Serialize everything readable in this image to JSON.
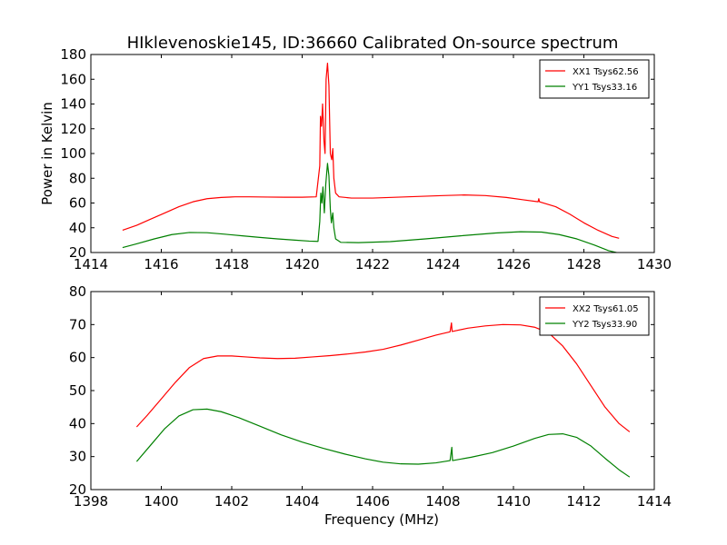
{
  "figure": {
    "title": "HIklevenoskie145, ID:36660 Calibrated On-source spectrum"
  },
  "chart_data": [
    {
      "type": "line",
      "title": "HIklevenoskie145, ID:36660 Calibrated On-source spectrum",
      "xlabel": "",
      "ylabel": "Power in Kelvin",
      "xlim": [
        1414,
        1430
      ],
      "ylim": [
        20,
        180
      ],
      "xticks": [
        "1414",
        "1416",
        "1418",
        "1420",
        "1422",
        "1424",
        "1426",
        "1428",
        "1430"
      ],
      "yticks": [
        "20",
        "40",
        "60",
        "80",
        "100",
        "120",
        "140",
        "160",
        "180"
      ],
      "legend_position": "top-right",
      "grid": false,
      "series": [
        {
          "name": "XX1 Tsys62.56",
          "color": "#ff0000",
          "points": [
            [
              1414.9,
              38
            ],
            [
              1415.3,
              42
            ],
            [
              1415.7,
              47
            ],
            [
              1416.1,
              52
            ],
            [
              1416.5,
              57
            ],
            [
              1416.9,
              61
            ],
            [
              1417.3,
              63.5
            ],
            [
              1417.7,
              64.5
            ],
            [
              1418.1,
              65
            ],
            [
              1418.5,
              65
            ],
            [
              1419.0,
              64.8
            ],
            [
              1419.5,
              64.7
            ],
            [
              1420.0,
              64.7
            ],
            [
              1420.4,
              65
            ],
            [
              1420.5,
              90
            ],
            [
              1420.52,
              130
            ],
            [
              1420.55,
              122
            ],
            [
              1420.58,
              140
            ],
            [
              1420.62,
              110
            ],
            [
              1420.65,
              100
            ],
            [
              1420.68,
              160
            ],
            [
              1420.72,
              173
            ],
            [
              1420.76,
              155
            ],
            [
              1420.8,
              100
            ],
            [
              1420.84,
              95
            ],
            [
              1420.87,
              104
            ],
            [
              1420.9,
              80
            ],
            [
              1420.95,
              68
            ],
            [
              1421.05,
              65
            ],
            [
              1421.4,
              64
            ],
            [
              1422.0,
              64
            ],
            [
              1423.0,
              65
            ],
            [
              1424.0,
              66
            ],
            [
              1424.6,
              66.5
            ],
            [
              1425.2,
              66
            ],
            [
              1425.8,
              64.5
            ],
            [
              1426.3,
              62.5
            ],
            [
              1426.7,
              61
            ],
            [
              1426.72,
              63.5
            ],
            [
              1426.74,
              61
            ],
            [
              1427.2,
              57
            ],
            [
              1427.6,
              51
            ],
            [
              1428.0,
              44
            ],
            [
              1428.4,
              38
            ],
            [
              1428.8,
              33
            ],
            [
              1429.0,
              31.5
            ]
          ]
        },
        {
          "name": "YY1 Tsys33.16",
          "color": "#008000",
          "points": [
            [
              1414.9,
              24
            ],
            [
              1415.3,
              27
            ],
            [
              1415.8,
              31
            ],
            [
              1416.3,
              34.5
            ],
            [
              1416.8,
              36.2
            ],
            [
              1417.3,
              36
            ],
            [
              1417.8,
              34.8
            ],
            [
              1418.3,
              33.5
            ],
            [
              1418.8,
              32.2
            ],
            [
              1419.3,
              31
            ],
            [
              1419.8,
              30
            ],
            [
              1420.2,
              29.2
            ],
            [
              1420.45,
              29
            ],
            [
              1420.5,
              45
            ],
            [
              1420.53,
              68
            ],
            [
              1420.56,
              60
            ],
            [
              1420.59,
              73
            ],
            [
              1420.63,
              52
            ],
            [
              1420.67,
              75
            ],
            [
              1420.72,
              92
            ],
            [
              1420.76,
              82
            ],
            [
              1420.8,
              55
            ],
            [
              1420.83,
              44
            ],
            [
              1420.87,
              52
            ],
            [
              1420.9,
              40
            ],
            [
              1420.95,
              31
            ],
            [
              1421.1,
              28.2
            ],
            [
              1421.6,
              28
            ],
            [
              1422.5,
              28.8
            ],
            [
              1423.5,
              31
            ],
            [
              1424.5,
              33.5
            ],
            [
              1425.5,
              35.8
            ],
            [
              1426.2,
              36.8
            ],
            [
              1426.8,
              36.5
            ],
            [
              1427.3,
              34.5
            ],
            [
              1427.8,
              31
            ],
            [
              1428.3,
              26
            ],
            [
              1428.7,
              21.5
            ],
            [
              1429.0,
              19.5
            ]
          ]
        }
      ]
    },
    {
      "type": "line",
      "title": "",
      "xlabel": "Frequency (MHz)",
      "ylabel": "",
      "xlim": [
        1398,
        1414
      ],
      "ylim": [
        20,
        80
      ],
      "xticks": [
        "1398",
        "1400",
        "1402",
        "1404",
        "1406",
        "1408",
        "1410",
        "1412",
        "1414"
      ],
      "yticks": [
        "20",
        "30",
        "40",
        "50",
        "60",
        "70",
        "80"
      ],
      "legend_position": "top-right",
      "grid": false,
      "series": [
        {
          "name": "XX2 Tsys61.05",
          "color": "#ff0000",
          "points": [
            [
              1399.3,
              39
            ],
            [
              1399.6,
              42.5
            ],
            [
              1400.0,
              47.5
            ],
            [
              1400.4,
              52.5
            ],
            [
              1400.8,
              57
            ],
            [
              1401.2,
              59.7
            ],
            [
              1401.6,
              60.5
            ],
            [
              1402.0,
              60.5
            ],
            [
              1402.4,
              60.2
            ],
            [
              1402.8,
              59.9
            ],
            [
              1403.3,
              59.7
            ],
            [
              1403.8,
              59.8
            ],
            [
              1404.3,
              60.2
            ],
            [
              1404.8,
              60.6
            ],
            [
              1405.3,
              61.1
            ],
            [
              1405.8,
              61.7
            ],
            [
              1406.3,
              62.5
            ],
            [
              1406.8,
              63.8
            ],
            [
              1407.3,
              65.3
            ],
            [
              1407.8,
              66.8
            ],
            [
              1408.2,
              67.8
            ],
            [
              1408.24,
              70.5
            ],
            [
              1408.26,
              67.9
            ],
            [
              1408.7,
              68.9
            ],
            [
              1409.2,
              69.6
            ],
            [
              1409.7,
              70
            ],
            [
              1410.2,
              69.9
            ],
            [
              1410.6,
              69.2
            ],
            [
              1411.0,
              67.5
            ],
            [
              1411.4,
              63.5
            ],
            [
              1411.8,
              58
            ],
            [
              1412.2,
              51.5
            ],
            [
              1412.6,
              45
            ],
            [
              1413.0,
              40
            ],
            [
              1413.3,
              37.5
            ]
          ]
        },
        {
          "name": "YY2 Tsys33.90",
          "color": "#008000",
          "points": [
            [
              1399.3,
              28.5
            ],
            [
              1399.7,
              33.5
            ],
            [
              1400.1,
              38.5
            ],
            [
              1400.5,
              42.3
            ],
            [
              1400.9,
              44.2
            ],
            [
              1401.3,
              44.4
            ],
            [
              1401.7,
              43.6
            ],
            [
              1402.2,
              41.8
            ],
            [
              1402.8,
              39.2
            ],
            [
              1403.4,
              36.6
            ],
            [
              1404.0,
              34.4
            ],
            [
              1404.6,
              32.5
            ],
            [
              1405.2,
              30.8
            ],
            [
              1405.8,
              29.3
            ],
            [
              1406.3,
              28.3
            ],
            [
              1406.8,
              27.8
            ],
            [
              1407.3,
              27.7
            ],
            [
              1407.8,
              28.1
            ],
            [
              1408.2,
              28.8
            ],
            [
              1408.25,
              32.8
            ],
            [
              1408.27,
              28.8
            ],
            [
              1408.8,
              29.8
            ],
            [
              1409.4,
              31.2
            ],
            [
              1410.0,
              33.2
            ],
            [
              1410.6,
              35.5
            ],
            [
              1411.0,
              36.7
            ],
            [
              1411.4,
              36.9
            ],
            [
              1411.8,
              35.8
            ],
            [
              1412.2,
              33.2
            ],
            [
              1412.6,
              29.5
            ],
            [
              1413.0,
              26
            ],
            [
              1413.3,
              23.8
            ]
          ]
        }
      ]
    }
  ]
}
